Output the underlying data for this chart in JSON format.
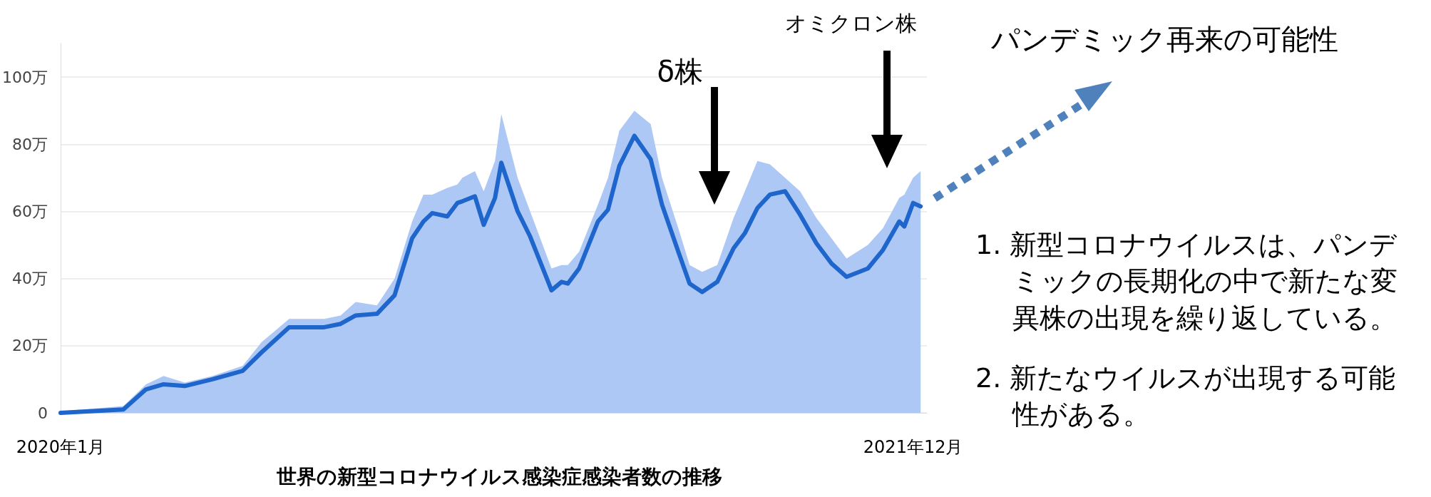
{
  "chart_data": {
    "type": "area",
    "title": "世界の新型コロナウイルス感染症感染者数の推移",
    "x": [
      "2020-01-22",
      "2020-03-12",
      "2020-03-30",
      "2020-04-13",
      "2020-04-30",
      "2020-05-22",
      "2020-06-15",
      "2020-06-30",
      "2020-07-22",
      "2020-08-19",
      "2020-09-01",
      "2020-09-13",
      "2020-09-30",
      "2020-10-14",
      "2020-10-28",
      "2020-11-06",
      "2020-11-13",
      "2020-11-25",
      "2020-12-03",
      "2020-12-07",
      "2020-12-17",
      "2020-12-24",
      "2021-01-02",
      "2021-01-07",
      "2021-01-20",
      "2021-01-30",
      "2021-02-16",
      "2021-02-24",
      "2021-03-01",
      "2021-03-10",
      "2021-03-25",
      "2021-04-02",
      "2021-04-11",
      "2021-04-23",
      "2021-05-06",
      "2021-05-15",
      "2021-05-28",
      "2021-06-06",
      "2021-06-16",
      "2021-06-28",
      "2021-07-11",
      "2021-07-20",
      "2021-07-30",
      "2021-08-09",
      "2021-08-21",
      "2021-09-02",
      "2021-09-15",
      "2021-09-27",
      "2021-10-09",
      "2021-10-26",
      "2021-11-07",
      "2021-11-20",
      "2021-11-24",
      "2021-12-01",
      "2021-12-07"
    ],
    "series": [
      {
        "color": "#aec8f5",
        "values": [
          0.5,
          2,
          8.5,
          11,
          9,
          11,
          14,
          21,
          28,
          28,
          29,
          33,
          32,
          40,
          57,
          65,
          65,
          67,
          68,
          70,
          72,
          66,
          75,
          89,
          70,
          60,
          43,
          44,
          44,
          48,
          62,
          70,
          84,
          90,
          86,
          70,
          55,
          44,
          42,
          44,
          58,
          66,
          75,
          74,
          70,
          66,
          58,
          52,
          46,
          50,
          55,
          64,
          65,
          70,
          72
        ]
      },
      {
        "type": "line",
        "color": "#1f66cc",
        "values": [
          0,
          1,
          7,
          8.5,
          8,
          10,
          12.5,
          18,
          25.5,
          25.5,
          26.5,
          29,
          29.5,
          35,
          52,
          57,
          59.5,
          58.5,
          62.5,
          63,
          64.5,
          56,
          64,
          74.5,
          60,
          52.5,
          36.5,
          39,
          38.5,
          43,
          57,
          60.5,
          73.5,
          82.5,
          75.5,
          62,
          48,
          38.5,
          36,
          39,
          49,
          53.5,
          61,
          65,
          66,
          59,
          50.5,
          44.5,
          40.5,
          43,
          48.5,
          57,
          55.5,
          62.5,
          61.5
        ]
      }
    ],
    "xlim": [
      "2020-01-22",
      "2021-12-12"
    ],
    "xticks": [
      {
        "value": "2020-01-22",
        "label": "2020年1月"
      },
      {
        "value": "2021-12-01",
        "label": "2021年12月"
      }
    ],
    "ylim": [
      0,
      110
    ],
    "yticks": [
      0,
      {
        "value": 20,
        "label": "20万"
      },
      {
        "value": 40,
        "label": "40万"
      },
      {
        "value": 60,
        "label": "60万"
      },
      {
        "value": 80,
        "label": "80万"
      },
      {
        "value": 100,
        "label": "100万"
      }
    ],
    "grid": "y",
    "marker": "none",
    "line_style": "solid",
    "annotations": [
      "δ株",
      "オミクロン株",
      "パンデミック再来の可能性",
      "1. 新型コロナウイルスは、パンデミックの長期化の中で新たな変異株の出現を繰り返している。",
      "2. 新たなウイルスが出現する可能性がある。"
    ]
  }
}
